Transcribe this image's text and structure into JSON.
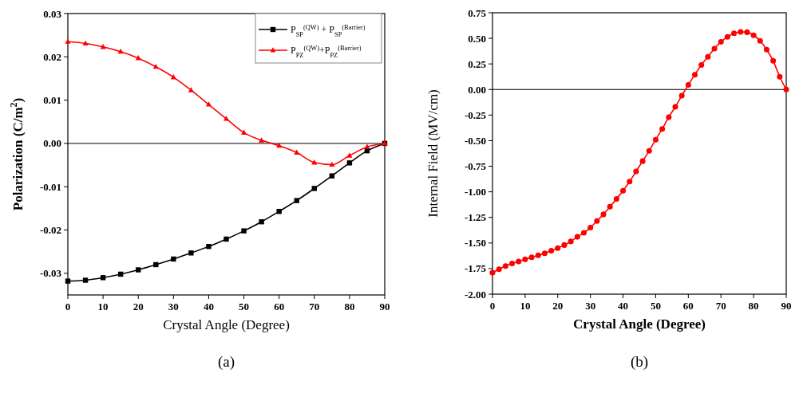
{
  "chart_data": [
    {
      "type": "line",
      "xlabel": "Crystal Angle (Degree)",
      "ylabel": "Polarization (C/m$^{2}$)",
      "xlim": [
        0,
        90
      ],
      "xticks": [
        0,
        10,
        20,
        30,
        40,
        50,
        60,
        70,
        80,
        90
      ],
      "ylim": [
        -0.035,
        0.03
      ],
      "yticks": [
        {
          "value": -0.03,
          "label": "-0.03"
        },
        {
          "value": -0.02,
          "label": "-0.02"
        },
        {
          "value": -0.01,
          "label": "-0.01"
        },
        {
          "value": 0,
          "label": "0.00"
        },
        {
          "value": 0.01,
          "label": "0.01"
        },
        {
          "value": 0.02,
          "label": "0.02"
        },
        {
          "value": 0.03,
          "label": "0.03"
        }
      ],
      "legend": "top right",
      "grid": false,
      "ref_lines": [
        {
          "axis": "y",
          "value": 0,
          "color": "#000000"
        }
      ],
      "annotations": [
        "(a)"
      ],
      "x": [
        0,
        5,
        10,
        15,
        20,
        25,
        30,
        35,
        40,
        45,
        50,
        55,
        60,
        65,
        70,
        75,
        80,
        85,
        90
      ],
      "series": [
        {
          "name": "P$_{SP}$$^{(QW)}$ + P$_{SP}$$^{(Barrier)}$",
          "color": "#000000",
          "marker": "square",
          "values": [
            -0.0318,
            -0.0316,
            -0.031,
            -0.0302,
            -0.0292,
            -0.028,
            -0.0267,
            -0.0253,
            -0.0238,
            -0.0221,
            -0.0202,
            -0.0181,
            -0.0157,
            -0.0132,
            -0.0104,
            -0.0075,
            -0.0045,
            -0.0017,
            0
          ]
        },
        {
          "name": "P$_{PZ}$$^{(QW)}$+P$_{PZ}$$^{(Barrier)}$",
          "color": "#ff0000",
          "marker": "triangle",
          "values": [
            0.0235,
            0.0231,
            0.0223,
            0.0212,
            0.0197,
            0.0177,
            0.0153,
            0.0123,
            0.009,
            0.0057,
            0.0025,
            0.0007,
            -0.0005,
            -0.0021,
            -0.0044,
            -0.0049,
            -0.0028,
            -0.0008,
            0
          ]
        }
      ]
    },
    {
      "type": "line",
      "xlabel": "Crystal Angle (Degree)",
      "ylabel": "Internal Field (MV/cm)",
      "xlim": [
        0,
        90
      ],
      "xticks": [
        0,
        10,
        20,
        30,
        40,
        50,
        60,
        70,
        80,
        90
      ],
      "ylim": [
        -2,
        0.75
      ],
      "yticks": [
        {
          "value": -2,
          "label": "-2.00"
        },
        {
          "value": -1.75,
          "label": "-1.75"
        },
        {
          "value": -1.5,
          "label": "-1.50"
        },
        {
          "value": -1.25,
          "label": "-1.25"
        },
        {
          "value": -1,
          "label": "-1.00"
        },
        {
          "value": -0.75,
          "label": "-0.75"
        },
        {
          "value": -0.5,
          "label": "-0.50"
        },
        {
          "value": -0.25,
          "label": "-0.25"
        },
        {
          "value": 0,
          "label": "0.00"
        },
        {
          "value": 0.25,
          "label": "0.25"
        },
        {
          "value": 0.5,
          "label": "0.50"
        },
        {
          "value": 0.75,
          "label": "0.75"
        }
      ],
      "legend": false,
      "grid": false,
      "ref_lines": [
        {
          "axis": "y",
          "value": 0,
          "color": "#000000"
        }
      ],
      "annotations": [
        "(b)"
      ],
      "x": [
        0,
        2,
        4,
        6,
        8,
        10,
        12,
        14,
        16,
        18,
        20,
        22,
        24,
        26,
        28,
        30,
        32,
        34,
        36,
        38,
        40,
        42,
        44,
        46,
        48,
        50,
        52,
        54,
        56,
        58,
        60,
        62,
        64,
        66,
        68,
        70,
        72,
        74,
        76,
        78,
        80,
        82,
        84,
        86,
        88,
        90
      ],
      "series": [
        {
          "color": "#ff0000",
          "marker": "circle",
          "values": [
            -1.79,
            -1.756,
            -1.725,
            -1.7,
            -1.68,
            -1.66,
            -1.64,
            -1.62,
            -1.6,
            -1.575,
            -1.55,
            -1.52,
            -1.485,
            -1.44,
            -1.4,
            -1.35,
            -1.285,
            -1.22,
            -1.145,
            -1.07,
            -0.99,
            -0.9,
            -0.8,
            -0.7,
            -0.6,
            -0.49,
            -0.385,
            -0.27,
            -0.17,
            -0.06,
            0.045,
            0.145,
            0.24,
            0.32,
            0.4,
            0.465,
            0.515,
            0.55,
            0.563,
            0.56,
            0.53,
            0.475,
            0.39,
            0.28,
            0.125,
            0
          ]
        }
      ]
    }
  ]
}
